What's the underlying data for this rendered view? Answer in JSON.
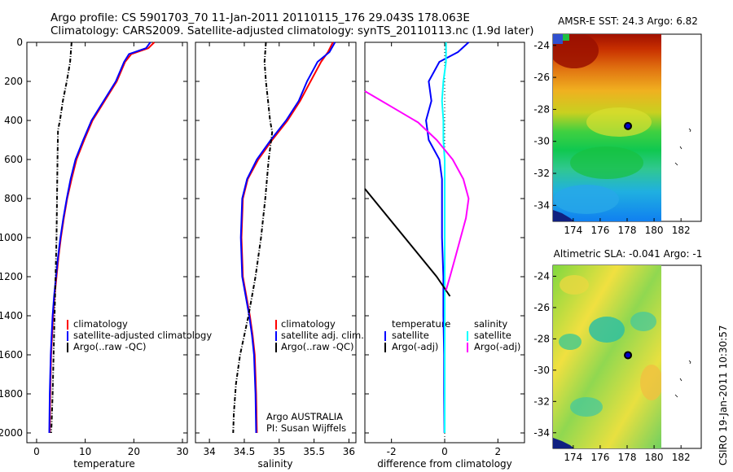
{
  "header": {
    "line1": "Argo profile: CS 5901703_70 11-Jan-2011 20110115_176 29.043S 178.063E",
    "line2": "Climatology: CARS2009. Satellite-adjusted climatology: synTS_20110113.nc (1.9d later)"
  },
  "credit": {
    "line1": "Argo AUSTRALIA",
    "line2": "PI: Susan Wijffels"
  },
  "side_stamp": "CSIRO 19-Jan-2011 10:30:57",
  "colors": {
    "climatology": "#ff0000",
    "satellite": "#0000ff",
    "argo": "#000000",
    "sat_salinity": "#00ffff",
    "argo_adj_salinity": "#ff00ff"
  },
  "chart_data": [
    {
      "type": "line",
      "xlabel": "temperature",
      "xlim": [
        -2,
        31
      ],
      "xticks": [
        0,
        10,
        20,
        30
      ],
      "ylim": [
        2050,
        0
      ],
      "yticks": [
        0,
        200,
        400,
        600,
        800,
        1000,
        1200,
        1400,
        1600,
        1800,
        2000
      ],
      "legend": [
        "climatology",
        "satellite-adjusted climatology",
        "Argo(..raw -QC)"
      ],
      "series": [
        {
          "name": "climatology",
          "color": "#ff0000",
          "style": "solid",
          "x": [
            24.2,
            23.0,
            19.5,
            18.2,
            16.5,
            14.0,
            11.5,
            9.8,
            8.2,
            7.2,
            6.3,
            5.6,
            5.0,
            4.5,
            4.1,
            3.7,
            3.4,
            3.2,
            3.0,
            2.8,
            2.7
          ],
          "y": [
            0,
            30,
            60,
            100,
            200,
            300,
            400,
            500,
            600,
            700,
            800,
            900,
            1000,
            1100,
            1200,
            1300,
            1400,
            1500,
            1600,
            1800,
            2000
          ]
        },
        {
          "name": "satellite-adjusted climatology",
          "color": "#0000ff",
          "style": "solid",
          "x": [
            23.4,
            22.5,
            19.0,
            18.0,
            16.3,
            13.8,
            11.3,
            9.6,
            8.0,
            7.0,
            6.2,
            5.5,
            4.9,
            4.4,
            4.0,
            3.6,
            3.3,
            3.1,
            2.9,
            2.7,
            2.6
          ],
          "y": [
            0,
            30,
            60,
            100,
            200,
            300,
            400,
            500,
            600,
            700,
            800,
            900,
            1000,
            1100,
            1200,
            1300,
            1400,
            1500,
            1600,
            1800,
            2000
          ]
        },
        {
          "name": "Argo(..raw -QC)",
          "color": "#000000",
          "style": "dashdot",
          "x": [
            7.2,
            6.9,
            6.2,
            5.4,
            4.8,
            4.4,
            4.3,
            4.2,
            4.1,
            3.9,
            3.7,
            3.5,
            3.3,
            3.1,
            3.0
          ],
          "y": [
            0,
            100,
            200,
            300,
            400,
            450,
            600,
            800,
            1000,
            1200,
            1400,
            1600,
            1800,
            1950,
            2000
          ]
        }
      ]
    },
    {
      "type": "line",
      "xlabel": "salinity",
      "xlim": [
        33.8,
        36.1
      ],
      "xticks": [
        34,
        34.5,
        35,
        35.5,
        36
      ],
      "ylim": [
        2050,
        0
      ],
      "legend": [
        "climatology",
        "satellite adj. clim.",
        "Argo(..raw -QC)"
      ],
      "series": [
        {
          "name": "climatology",
          "color": "#ff0000",
          "style": "solid",
          "x": [
            35.77,
            35.7,
            35.6,
            35.45,
            35.3,
            35.12,
            34.9,
            34.7,
            34.55,
            34.48,
            34.46,
            34.48,
            34.53,
            34.58,
            34.62,
            34.65,
            34.67,
            34.68
          ],
          "y": [
            0,
            50,
            100,
            200,
            300,
            400,
            500,
            600,
            700,
            800,
            1000,
            1200,
            1300,
            1400,
            1500,
            1600,
            1800,
            2000
          ]
        },
        {
          "name": "satellite adj. clim.",
          "color": "#0000ff",
          "style": "solid",
          "x": [
            35.8,
            35.72,
            35.55,
            35.4,
            35.28,
            35.1,
            34.88,
            34.68,
            34.54,
            34.47,
            34.45,
            34.47,
            34.52,
            34.57,
            34.61,
            34.64,
            34.66,
            34.67
          ],
          "y": [
            0,
            50,
            100,
            200,
            300,
            400,
            500,
            600,
            700,
            800,
            1000,
            1200,
            1300,
            1400,
            1500,
            1600,
            1800,
            2000
          ]
        },
        {
          "name": "Argo(..raw -QC)",
          "color": "#000000",
          "style": "dashdot",
          "x": [
            34.81,
            34.79,
            34.81,
            34.84,
            34.87,
            34.9,
            34.85,
            34.8,
            34.74,
            34.66,
            34.56,
            34.44,
            34.38,
            34.35,
            34.34
          ],
          "y": [
            0,
            100,
            200,
            300,
            400,
            460,
            600,
            800,
            1000,
            1200,
            1400,
            1600,
            1750,
            1900,
            2000
          ]
        }
      ]
    },
    {
      "type": "line",
      "xlabel": "difference from climatology",
      "xlim": [
        -3,
        3
      ],
      "xticks": [
        -2,
        0,
        2
      ],
      "ylim": [
        2050,
        0
      ],
      "zero_line": "dotted",
      "legend": [
        "temperature",
        "satellite",
        "Argo(-adj)",
        "salinity",
        "satellite",
        "Argo(-adj)"
      ],
      "series": [
        {
          "name": "temperature satellite",
          "color": "#0000ff",
          "style": "solid",
          "x": [
            0.9,
            0.5,
            -0.2,
            -0.6,
            -0.5,
            -0.7,
            -0.6,
            -0.2,
            -0.1,
            -0.1,
            -0.1,
            -0.05,
            -0.05,
            -0.02,
            -0.02,
            -0.01
          ],
          "y": [
            0,
            50,
            100,
            200,
            300,
            400,
            500,
            600,
            700,
            800,
            1000,
            1200,
            1400,
            1600,
            1800,
            2000
          ]
        },
        {
          "name": "salinity satellite",
          "color": "#00ffff",
          "style": "solid",
          "x": [
            0.05,
            0.05,
            -0.05,
            -0.1,
            -0.05,
            -0.05,
            0.0,
            0.0,
            0.0,
            0.0,
            0.0,
            0.0,
            0.0,
            0.0
          ],
          "y": [
            0,
            100,
            200,
            300,
            400,
            500,
            600,
            800,
            1000,
            1200,
            1400,
            1600,
            1800,
            2000
          ]
        },
        {
          "name": "temperature Argo(-adj)",
          "color": "#000000",
          "style": "solid",
          "x": [
            -3.0,
            -1.5,
            -0.3,
            0.2
          ],
          "y": [
            750,
            1000,
            1200,
            1300
          ]
        },
        {
          "name": "salinity Argo(-adj)",
          "color": "#ff00ff",
          "style": "solid",
          "x": [
            -3.0,
            -2.0,
            -1.0,
            -0.3,
            0.3,
            0.7,
            0.9,
            0.8,
            0.6,
            0.4,
            0.2,
            0.05
          ],
          "y": [
            250,
            330,
            410,
            500,
            600,
            700,
            800,
            900,
            1000,
            1100,
            1200,
            1270
          ]
        }
      ]
    },
    {
      "type": "heatmap",
      "title": "AMSR-E SST: 24.3 Argo: 6.82",
      "xticks": [
        174,
        176,
        178,
        180,
        182
      ],
      "yticks": [
        -24,
        -26,
        -28,
        -30,
        -32,
        -34
      ],
      "xlim": [
        172.5,
        183.5
      ],
      "ylim": [
        -35,
        -23.3
      ],
      "marker": {
        "lon": 178.063,
        "lat": -29.043
      }
    },
    {
      "type": "heatmap",
      "title": "Altimetric SLA: -0.041 Argo: -1",
      "xticks": [
        174,
        176,
        178,
        180,
        182
      ],
      "yticks": [
        -24,
        -26,
        -28,
        -30,
        -32,
        -34
      ],
      "xlim": [
        172.5,
        183.5
      ],
      "ylim": [
        -35,
        -23.3
      ],
      "marker": {
        "lon": 178.063,
        "lat": -29.043
      }
    }
  ]
}
